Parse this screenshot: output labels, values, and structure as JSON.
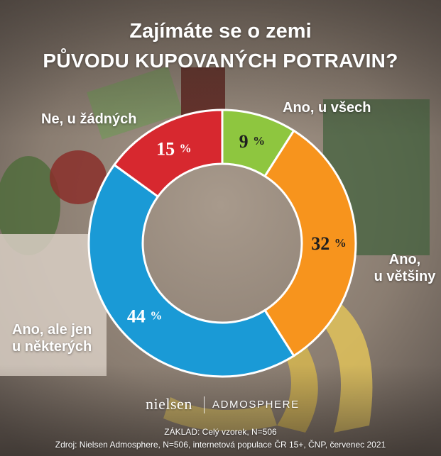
{
  "title_line1": "Zajímáte se o zemi",
  "title_line2": "PŮVODU KUPOVANÝCH POTRAVIN?",
  "brand": {
    "nielsen": "nielsen",
    "admosphere": "ADMOSPHERE"
  },
  "footer": {
    "base": "ZÁKLAD: Celý vzorek, N=506",
    "source": "Zdroj: Nielsen Admosphere, N=506, internetová populace ČR 15+, ČNP, červenec 2021"
  },
  "chart_data": {
    "type": "pie",
    "unit": "%",
    "slices": [
      {
        "label": "Ano, u všech",
        "value": 9,
        "color": "#8ec63f"
      },
      {
        "label": "Ano, u většiny",
        "value": 32,
        "color": "#f7941d"
      },
      {
        "label": "Ano, ale jen u některých",
        "value": 44,
        "color": "#1a9ad6"
      },
      {
        "label": "Ne, u žádných",
        "value": 15,
        "color": "#d7282f"
      }
    ]
  }
}
